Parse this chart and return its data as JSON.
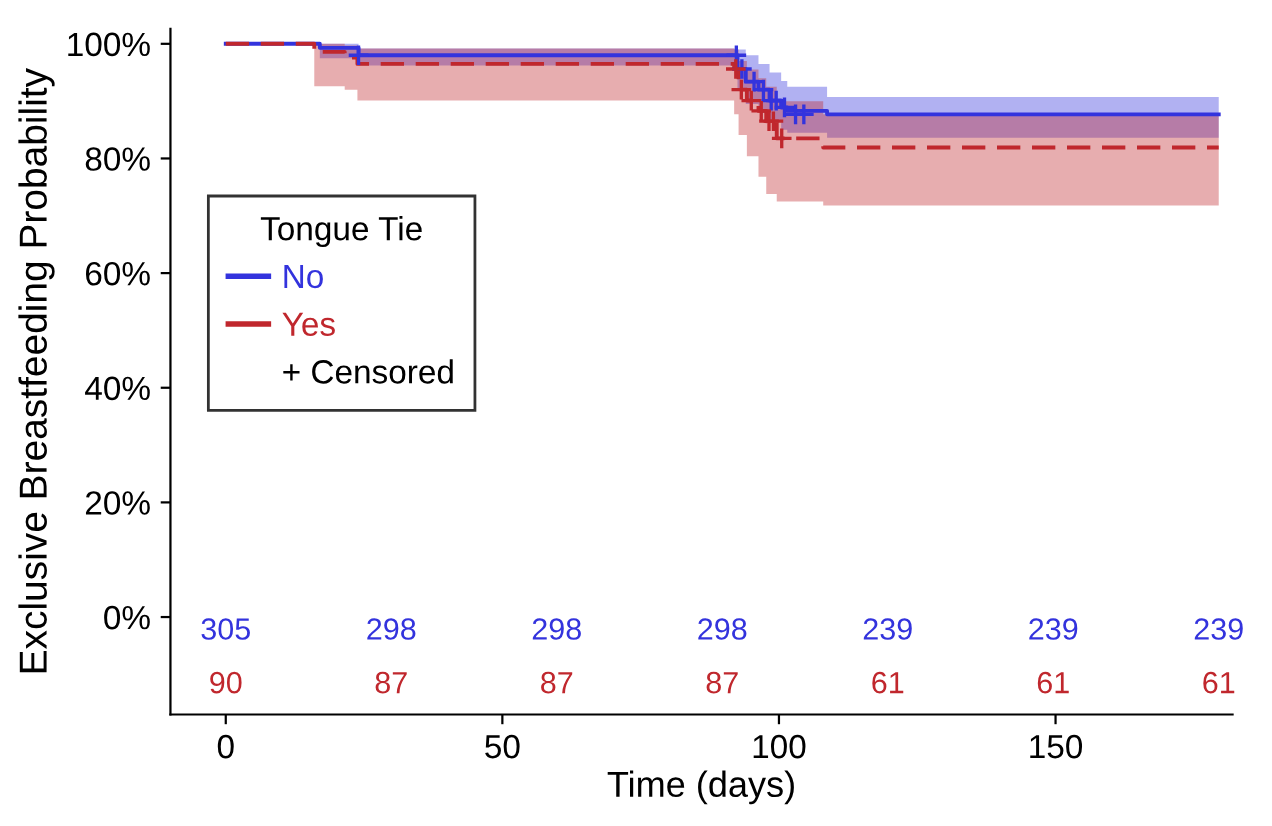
{
  "chart_data": {
    "type": "step",
    "xlabel": "Time (days)",
    "ylabel": "Exclusive Breastfeeding Probability",
    "legend_title": "Tongue Tie",
    "xlim": [
      -10,
      182
    ],
    "ylim": [
      -17,
      102.6
    ],
    "xticks": [
      0,
      50,
      100,
      150
    ],
    "yticks": [
      {
        "value": 0,
        "label": "0%"
      },
      {
        "value": 20,
        "label": "20%"
      },
      {
        "value": 40,
        "label": "40%"
      },
      {
        "value": 60,
        "label": "60%"
      },
      {
        "value": 80,
        "label": "80%"
      },
      {
        "value": 100,
        "label": "100%"
      }
    ],
    "grid": false,
    "legend": "left",
    "series": [
      {
        "name": "No",
        "color": "#3333dd",
        "line_style": "solid",
        "x": [
          0,
          17,
          24,
          92.5,
          94,
          96.3,
          98.3,
          100.4,
          101.5,
          108.7,
          179.5
        ],
        "values": [
          100,
          99.3,
          98.0,
          95.6,
          93.4,
          92.0,
          90.1,
          88.9,
          88.3,
          87.7,
          87.7
        ],
        "upper": [
          100,
          100,
          99.2,
          99.0,
          98.0,
          96.5,
          95.0,
          93.5,
          92.5,
          90.7,
          90.7
        ],
        "lower": [
          100,
          97.5,
          96.2,
          92.0,
          89.5,
          88.0,
          86.5,
          85.0,
          84.5,
          83.6,
          83.6
        ]
      },
      {
        "name": "Yes",
        "color": "#c0272d",
        "line_style": "dashed",
        "x": [
          0,
          16,
          21.5,
          23.8,
          91.9,
          92.7,
          94.2,
          96.3,
          97.7,
          99.6,
          108,
          179.5
        ],
        "values": [
          100,
          98.6,
          97.6,
          96.5,
          95.6,
          92.0,
          90.1,
          88.3,
          86.5,
          83.5,
          81.9,
          81.9
        ],
        "upper": [
          100,
          100,
          99.7,
          99.2,
          99.0,
          97.0,
          95.5,
          94.0,
          92.5,
          90.0,
          87.7,
          87.7
        ],
        "lower": [
          100,
          92.6,
          92.0,
          90.1,
          87.7,
          84.1,
          80.4,
          76.8,
          73.8,
          72.5,
          71.8,
          71.8
        ]
      },
      {
        "type": "scatter",
        "marker": "cross",
        "x": [
          24,
          92.3,
          93.3,
          95.5,
          97.2,
          98.6,
          99.5,
          101,
          103,
          104.5,
          92.2,
          93.2,
          95,
          96.8,
          98.2,
          99,
          100.5
        ],
        "values": [
          98.0,
          98.0,
          95.6,
          93.4,
          92.0,
          90.1,
          90.1,
          88.9,
          87.7,
          87.7,
          95.6,
          92.0,
          90.1,
          88.3,
          86.5,
          86.5,
          83.5
        ],
        "colors": [
          "#3333dd",
          "#3333dd",
          "#3333dd",
          "#3333dd",
          "#3333dd",
          "#3333dd",
          "#3333dd",
          "#3333dd",
          "#3333dd",
          "#3333dd",
          "#c0272d",
          "#c0272d",
          "#c0272d",
          "#c0272d",
          "#c0272d",
          "#c0272d",
          "#c0272d"
        ]
      }
    ],
    "annotations": [
      "305",
      "298",
      "298",
      "298",
      "239",
      "239",
      "239",
      "90",
      "87",
      "87",
      "87",
      "61",
      "61",
      "61",
      "+ Censored"
    ]
  }
}
